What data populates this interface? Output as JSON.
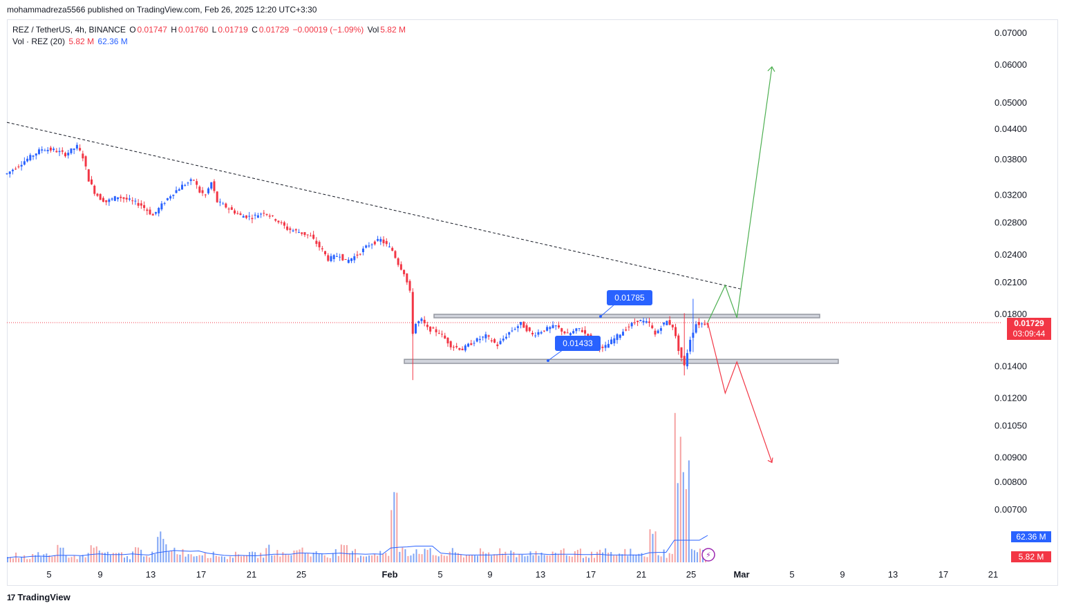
{
  "header": {
    "published_line": "mohammadreza5566 published on TradingView.com, Feb 26, 2025 12:20 UTC+3:30"
  },
  "legend": {
    "symbol": "REZ / TetherUS, 4h, BINANCE",
    "o_label": "O",
    "o": "0.01747",
    "h_label": "H",
    "h": "0.01760",
    "l_label": "L",
    "l": "0.01719",
    "c_label": "C",
    "c": "0.01729",
    "change": "−0.00019 (−1.09%)",
    "vol_label": "Vol",
    "vol": "5.82 M",
    "vol_ind": "Vol · REZ (20)",
    "vol_ind_v1": "5.82 M",
    "vol_ind_v2": "62.36 M"
  },
  "price_tags": {
    "last_price": "0.01729",
    "countdown": "03:09:44",
    "vol_ma": "62.36 M",
    "vol_last": "5.82 M"
  },
  "annotations": {
    "resistance_label": "0.01785",
    "support_label": "0.01433"
  },
  "brand": {
    "name": "TradingView",
    "logo_text": "17"
  },
  "colors": {
    "up": "#2962ff",
    "down": "#f23645",
    "vol_up": "#7ea4f5",
    "vol_down": "#f5a3a3",
    "bullish_path": "#4caf50",
    "bearish_path": "#f23645",
    "box_fill": "#d1d4dc",
    "tag_blue": "#2962ff"
  },
  "chart_data": {
    "type": "candlestick",
    "price_scale": "log",
    "y_ticks": [
      "0.07000",
      "0.06000",
      "0.05000",
      "0.04400",
      "0.03800",
      "0.03200",
      "0.02800",
      "0.02400",
      "0.02100",
      "0.01800",
      "0.01400",
      "0.01200",
      "0.01050",
      "0.00900",
      "0.00800",
      "0.00700"
    ],
    "x_ticks": [
      "5",
      "9",
      "13",
      "17",
      "21",
      "25",
      "Feb",
      "5",
      "9",
      "13",
      "17",
      "21",
      "25",
      "Mar",
      "5",
      "9",
      "13",
      "17",
      "21"
    ],
    "price_path": [
      [
        0,
        0.0355
      ],
      [
        2,
        0.037
      ],
      [
        4,
        0.0385
      ],
      [
        6,
        0.04
      ],
      [
        8,
        0.0398
      ],
      [
        10,
        0.039
      ],
      [
        12,
        0.0405
      ],
      [
        13,
        0.0385
      ],
      [
        14,
        0.0345
      ],
      [
        15,
        0.0325
      ],
      [
        16,
        0.0315
      ],
      [
        17,
        0.031
      ],
      [
        19,
        0.0318
      ],
      [
        21,
        0.0312
      ],
      [
        23,
        0.0305
      ],
      [
        25,
        0.029
      ],
      [
        26,
        0.03
      ],
      [
        28,
        0.032
      ],
      [
        30,
        0.0335
      ],
      [
        32,
        0.0345
      ],
      [
        33,
        0.0325
      ],
      [
        34,
        0.032
      ],
      [
        35,
        0.034
      ],
      [
        36,
        0.031
      ],
      [
        38,
        0.03
      ],
      [
        40,
        0.029
      ],
      [
        42,
        0.0288
      ],
      [
        44,
        0.0295
      ],
      [
        46,
        0.0285
      ],
      [
        48,
        0.0272
      ],
      [
        50,
        0.0268
      ],
      [
        52,
        0.0262
      ],
      [
        54,
        0.0245
      ],
      [
        55,
        0.0235
      ],
      [
        57,
        0.024
      ],
      [
        58,
        0.0232
      ],
      [
        60,
        0.024
      ],
      [
        62,
        0.0252
      ],
      [
        64,
        0.0258
      ],
      [
        66,
        0.0245
      ],
      [
        67,
        0.023
      ],
      [
        68,
        0.022
      ],
      [
        69,
        0.02
      ],
      [
        69.5,
        0.0165
      ],
      [
        70,
        0.0172
      ],
      [
        71,
        0.0175
      ],
      [
        72,
        0.0168
      ],
      [
        74,
        0.0165
      ],
      [
        76,
        0.0155
      ],
      [
        78,
        0.0152
      ],
      [
        80,
        0.0158
      ],
      [
        82,
        0.0162
      ],
      [
        84,
        0.0155
      ],
      [
        86,
        0.0165
      ],
      [
        88,
        0.0172
      ],
      [
        90,
        0.0163
      ],
      [
        92,
        0.0167
      ],
      [
        94,
        0.017
      ],
      [
        96,
        0.0163
      ],
      [
        98,
        0.0168
      ],
      [
        100,
        0.016
      ],
      [
        102,
        0.0152
      ],
      [
        104,
        0.016
      ],
      [
        106,
        0.0168
      ],
      [
        108,
        0.0175
      ],
      [
        110,
        0.0172
      ],
      [
        111,
        0.0163
      ],
      [
        112,
        0.017
      ],
      [
        113,
        0.0174
      ],
      [
        114,
        0.017
      ],
      [
        115,
        0.0152
      ],
      [
        116,
        0.014
      ],
      [
        117,
        0.016
      ],
      [
        118,
        0.0172
      ],
      [
        119,
        0.0172
      ],
      [
        120,
        0.0173
      ]
    ],
    "volume_path": [
      2,
      3,
      2,
      4,
      3,
      2,
      5,
      3,
      2,
      3,
      6,
      4,
      3,
      3,
      2,
      5,
      4,
      3,
      9,
      6,
      5,
      4,
      3,
      4,
      3,
      3,
      2,
      3,
      4,
      3,
      3,
      5,
      4,
      3,
      4,
      6,
      3,
      4,
      3,
      4,
      5,
      4,
      3,
      3,
      4,
      3,
      22,
      6,
      4,
      5,
      4,
      3,
      3,
      4,
      3,
      3,
      4,
      3,
      3,
      5,
      4,
      3,
      4,
      4,
      3,
      3,
      5,
      3,
      4,
      3,
      3,
      4,
      3,
      3,
      4,
      3,
      3,
      10,
      4,
      3,
      48,
      30,
      7,
      5
    ],
    "trendline": {
      "start": [
        0,
        0.0455
      ],
      "end": [
        126,
        0.0203
      ]
    },
    "resistance_zone": {
      "top": 0.018,
      "bottom": 0.0177,
      "label": "0.01785"
    },
    "support_zone": {
      "top": 0.01448,
      "bottom": 0.0142,
      "label": "0.01433"
    },
    "bull_projection": [
      [
        120,
        0.0173
      ],
      [
        123,
        0.0207
      ],
      [
        125,
        0.0177
      ],
      [
        131,
        0.0595
      ]
    ],
    "bear_projection": [
      [
        120,
        0.0173
      ],
      [
        123,
        0.0123
      ],
      [
        125,
        0.0143
      ],
      [
        131,
        0.0088
      ]
    ],
    "last_index": 120
  }
}
